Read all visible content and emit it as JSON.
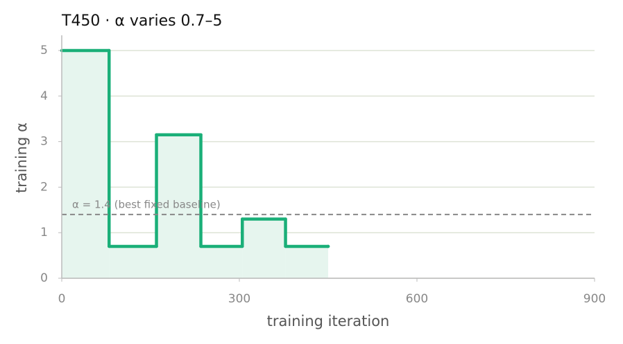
{
  "chart_data": {
    "type": "line",
    "step": "post",
    "title": "T450   ·   α varies 0.7–5",
    "x": [
      0,
      80,
      160,
      235,
      305,
      378,
      450
    ],
    "values": [
      5,
      0.7,
      3.15,
      0.7,
      1.3,
      0.7,
      0.7
    ],
    "color": "#1aaf78",
    "fill_color": "#e6f5ee",
    "xlabel": "training iteration",
    "ylabel": "training α",
    "xlim": [
      0,
      900
    ],
    "xticks": [
      0,
      300,
      600,
      900
    ],
    "ylim": [
      0,
      5
    ],
    "yticks": [
      0,
      1,
      2,
      3,
      4,
      5
    ],
    "grid": true,
    "reference": {
      "value": 1.4,
      "label": "α = 1.4 (best fixed baseline)"
    }
  }
}
